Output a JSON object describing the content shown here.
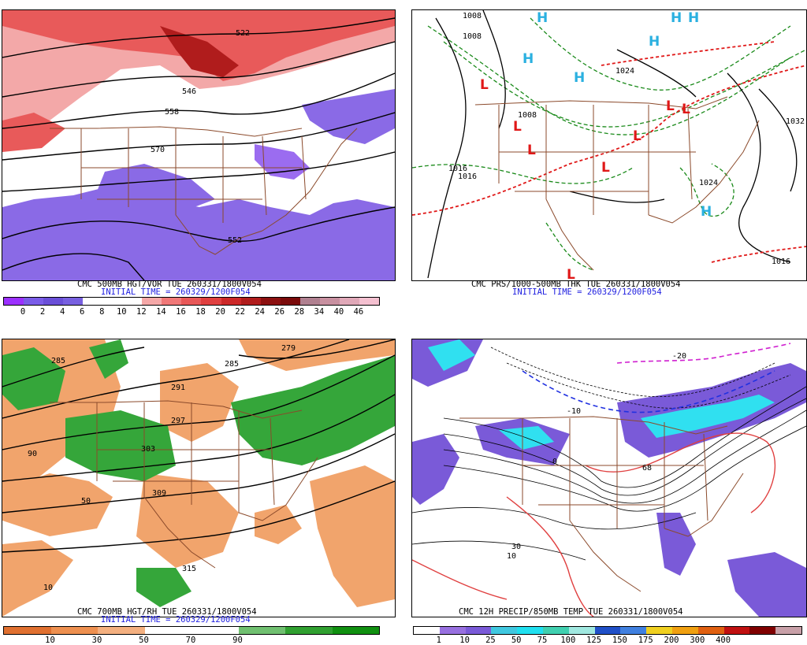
{
  "panels": [
    {
      "id": "p1",
      "title": "CMC 500MB HGT/VOR TUE 260331/1800V054",
      "init": "INITIAL TIME = 260329/1200F054",
      "colorbar": {
        "colors": [
          "#9b30ff",
          "#7a5ce8",
          "#6a4fd8",
          "#7860e0",
          "#ffffff",
          "#ffffff",
          "#ffffff",
          "#f5a8a8",
          "#f07878",
          "#e85858",
          "#e04040",
          "#cc2828",
          "#b01c1c",
          "#8c1010",
          "#7a0a0a",
          "#b08090",
          "#c890a0",
          "#e0a8b8",
          "#f4c0d0"
        ],
        "ticks": [
          "0",
          "2",
          "4",
          "6",
          "8",
          "10",
          "12",
          "14",
          "16",
          "18",
          "20",
          "22",
          "24",
          "26",
          "28",
          "34",
          "40",
          "46"
        ]
      },
      "contour_labels": [
        "522",
        "546",
        "558",
        "570",
        "552"
      ]
    },
    {
      "id": "p2",
      "title": "CMC PRS/1000-500MB THK TUE 260331/1800V054",
      "init": "INITIAL TIME = 260329/1200F054",
      "pressure_labels": [
        "1008",
        "1008",
        "1016",
        "1016",
        "1024",
        "1024",
        "1032",
        "1016",
        "1008"
      ],
      "highs": [
        "H",
        "H",
        "H",
        "H",
        "H",
        "H",
        "H"
      ],
      "lows": [
        "L",
        "L",
        "L",
        "L",
        "L",
        "L",
        "L",
        "L"
      ]
    },
    {
      "id": "p3",
      "title": "CMC 700MB HGT/RH TUE 260331/1800V054",
      "init": "INITIAL TIME = 260329/1200F054",
      "colorbar": {
        "colors": [
          "#e07030",
          "#ee9050",
          "#f4b080",
          "#ffffff",
          "#ffffff",
          "#70c070",
          "#30a030",
          "#109010"
        ],
        "ticks": [
          "10",
          "30",
          "50",
          "70",
          "90"
        ]
      },
      "contour_labels": [
        "285",
        "279",
        "285",
        "291",
        "297",
        "303",
        "309",
        "315",
        "10",
        "50",
        "90"
      ]
    },
    {
      "id": "p4",
      "title": "CMC 12H PRECIP/850MB TEMP TUE 260331/1800V054",
      "init": "",
      "colorbar": {
        "colors": [
          "#ffffff",
          "#9870e0",
          "#7a5ad8",
          "#40c8e0",
          "#20e0f0",
          "#40d0b0",
          "#a0e8e0",
          "#2050c8",
          "#4080e0",
          "#f0d020",
          "#f0a010",
          "#e06010",
          "#c01010",
          "#800000",
          "#c8a0a8"
        ],
        "ticks": [
          "1",
          "10",
          "25",
          "50",
          "75",
          "100",
          "125",
          "150",
          "175",
          "200",
          "300",
          "400"
        ]
      },
      "contour_labels": [
        "-20",
        "-10",
        "0",
        "10",
        "68",
        "30"
      ]
    }
  ]
}
